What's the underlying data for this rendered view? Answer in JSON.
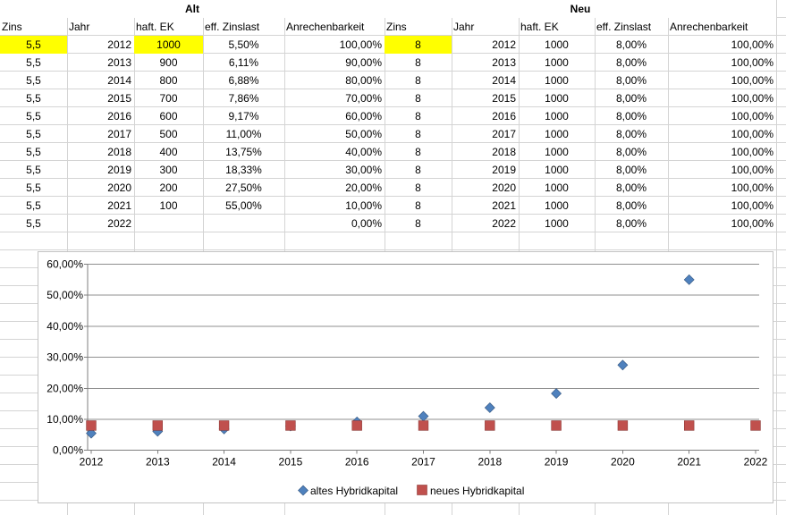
{
  "tables": {
    "alt": {
      "title": "Alt",
      "columns": [
        "Zins",
        "Jahr",
        "haft. EK",
        "eff. Zinslast",
        "Anrechenbarkeit"
      ],
      "rows": [
        [
          "5,5",
          "2012",
          "1000",
          "5,50%",
          "100,00%"
        ],
        [
          "5,5",
          "2013",
          "900",
          "6,11%",
          "90,00%"
        ],
        [
          "5,5",
          "2014",
          "800",
          "6,88%",
          "80,00%"
        ],
        [
          "5,5",
          "2015",
          "700",
          "7,86%",
          "70,00%"
        ],
        [
          "5,5",
          "2016",
          "600",
          "9,17%",
          "60,00%"
        ],
        [
          "5,5",
          "2017",
          "500",
          "11,00%",
          "50,00%"
        ],
        [
          "5,5",
          "2018",
          "400",
          "13,75%",
          "40,00%"
        ],
        [
          "5,5",
          "2019",
          "300",
          "18,33%",
          "30,00%"
        ],
        [
          "5,5",
          "2020",
          "200",
          "27,50%",
          "20,00%"
        ],
        [
          "5,5",
          "2021",
          "100",
          "55,00%",
          "10,00%"
        ],
        [
          "5,5",
          "2022",
          "",
          "",
          "0,00%"
        ]
      ],
      "highlight_cells": [
        [
          0,
          0
        ],
        [
          0,
          2
        ]
      ]
    },
    "neu": {
      "title": "Neu",
      "columns": [
        "Zins",
        "Jahr",
        "haft. EK",
        "eff. Zinslast",
        "Anrechenbarkeit"
      ],
      "rows": [
        [
          "8",
          "2012",
          "1000",
          "8,00%",
          "100,00%"
        ],
        [
          "8",
          "2013",
          "1000",
          "8,00%",
          "100,00%"
        ],
        [
          "8",
          "2014",
          "1000",
          "8,00%",
          "100,00%"
        ],
        [
          "8",
          "2015",
          "1000",
          "8,00%",
          "100,00%"
        ],
        [
          "8",
          "2016",
          "1000",
          "8,00%",
          "100,00%"
        ],
        [
          "8",
          "2017",
          "1000",
          "8,00%",
          "100,00%"
        ],
        [
          "8",
          "2018",
          "1000",
          "8,00%",
          "100,00%"
        ],
        [
          "8",
          "2019",
          "1000",
          "8,00%",
          "100,00%"
        ],
        [
          "8",
          "2020",
          "1000",
          "8,00%",
          "100,00%"
        ],
        [
          "8",
          "2021",
          "1000",
          "8,00%",
          "100,00%"
        ],
        [
          "8",
          "2022",
          "1000",
          "8,00%",
          "100,00%"
        ]
      ],
      "highlight_cells": [
        [
          0,
          0
        ]
      ]
    }
  },
  "chart_data": {
    "type": "scatter",
    "x": [
      2012,
      2013,
      2014,
      2015,
      2016,
      2017,
      2018,
      2019,
      2020,
      2021,
      2022
    ],
    "x_tick_labels": [
      "2012",
      "2013",
      "2014",
      "2015",
      "2016",
      "2017",
      "2018",
      "2019",
      "2020",
      "2021",
      "2022"
    ],
    "y_tick_labels": [
      "0,00%",
      "10,00%",
      "20,00%",
      "30,00%",
      "40,00%",
      "50,00%",
      "60,00%"
    ],
    "ylim": [
      0,
      60
    ],
    "grid": true,
    "legend_position": "bottom",
    "series": [
      {
        "name": "altes Hybridkapital",
        "marker": "diamond",
        "color": "#4f81bd",
        "values": [
          5.5,
          6.11,
          6.88,
          7.86,
          9.17,
          11.0,
          13.75,
          18.33,
          27.5,
          55.0,
          null
        ]
      },
      {
        "name": "neues Hybridkapital",
        "marker": "square",
        "color": "#c0504d",
        "values": [
          8,
          8,
          8,
          8,
          8,
          8,
          8,
          8,
          8,
          8,
          8
        ]
      }
    ]
  },
  "colors": {
    "cell_highlight": "#ffff00",
    "sheet_gridline": "#d4d4d4",
    "chart_border": "#c3c3c3",
    "chart_gridline": "#8f8f8f",
    "chart_axis": "#7f7f7f"
  }
}
